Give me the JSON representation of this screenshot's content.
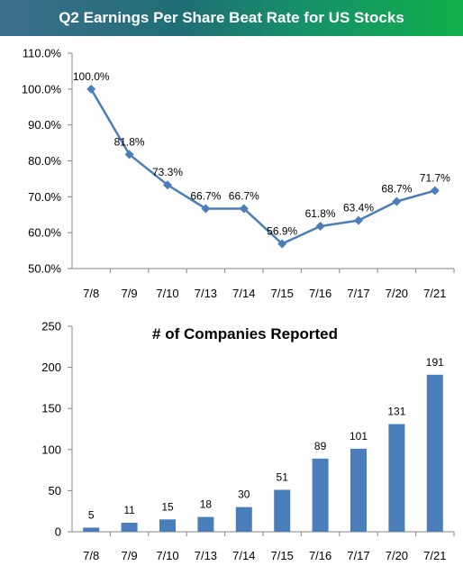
{
  "banner": {
    "title": "Q2 Earnings Per Share Beat Rate for US Stocks"
  },
  "chart_data": [
    {
      "type": "line",
      "title": "Q2 Earnings Per Share Beat Rate for US Stocks",
      "categories": [
        "7/8",
        "7/9",
        "7/10",
        "7/13",
        "7/14",
        "7/15",
        "7/16",
        "7/17",
        "7/20",
        "7/21"
      ],
      "values": [
        100.0,
        81.8,
        73.3,
        66.7,
        66.7,
        56.9,
        61.8,
        63.4,
        68.7,
        71.7
      ],
      "data_labels": [
        "100.0%",
        "81.8%",
        "73.3%",
        "66.7%",
        "66.7%",
        "56.9%",
        "61.8%",
        "63.4%",
        "68.7%",
        "71.7%"
      ],
      "y_ticks": [
        "50.0%",
        "60.0%",
        "70.0%",
        "80.0%",
        "90.0%",
        "100.0%",
        "110.0%"
      ],
      "ylim": [
        50,
        110
      ],
      "grid": false,
      "color": "#4a7ebb"
    },
    {
      "type": "bar",
      "title": "# of Companies Reported",
      "categories": [
        "7/8",
        "7/9",
        "7/10",
        "7/13",
        "7/14",
        "7/15",
        "7/16",
        "7/17",
        "7/20",
        "7/21"
      ],
      "values": [
        5,
        11,
        15,
        18,
        30,
        51,
        89,
        101,
        131,
        191
      ],
      "y_ticks": [
        "0",
        "50",
        "100",
        "150",
        "200",
        "250"
      ],
      "ylim": [
        0,
        250
      ],
      "grid": false,
      "color": "#4a7ebb"
    }
  ]
}
